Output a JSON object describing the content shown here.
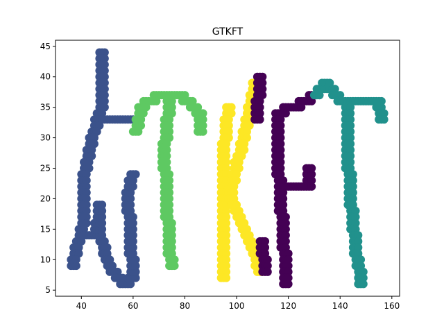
{
  "chart_data": {
    "type": "scatter",
    "title": "GTKFT",
    "xlabel": "",
    "ylabel": "",
    "xlim": [
      30,
      163
    ],
    "ylim": [
      4,
      46
    ],
    "xticks": [
      40,
      60,
      80,
      100,
      120,
      140,
      160
    ],
    "yticks": [
      5,
      10,
      15,
      20,
      25,
      30,
      35,
      40,
      45
    ],
    "grid": false,
    "legend": "none",
    "marker_colors": {
      "G": "#3b528b",
      "T1": "#5ec962",
      "K": "#fde725",
      "F": "#440154",
      "T2": "#21918c"
    },
    "series": [
      {
        "name": "G",
        "color": "#3b528b",
        "strokes": [
          [
            [
              48,
              44
            ],
            [
              48,
              35
            ],
            [
              44,
              30
            ],
            [
              41,
              24
            ],
            [
              41,
              16
            ],
            [
              38,
              12
            ],
            [
              37,
              9
            ]
          ],
          [
            [
              41,
              14
            ],
            [
              46,
              14
            ]
          ],
          [
            [
              46,
              14
            ],
            [
              47,
              19
            ],
            [
              47,
              14
            ],
            [
              50,
              10
            ],
            [
              52,
              8
            ],
            [
              57,
              6
            ],
            [
              60,
              7
            ],
            [
              59,
              14
            ],
            [
              58,
              21
            ],
            [
              60,
              24
            ]
          ],
          [
            [
              46,
              33
            ],
            [
              62,
              33
            ]
          ]
        ]
      },
      {
        "name": "T1",
        "color": "#5ec962",
        "strokes": [
          [
            [
              61,
              31
            ],
            [
              63,
              35
            ],
            [
              70,
              37
            ],
            [
              78,
              37
            ],
            [
              86,
              34
            ],
            [
              86,
              31
            ]
          ],
          [
            [
              74,
              36
            ],
            [
              72,
              28
            ],
            [
              73,
              20
            ],
            [
              74,
              12
            ],
            [
              75,
              9
            ]
          ]
        ]
      },
      {
        "name": "K",
        "color": "#fde725",
        "strokes": [
          [
            [
              97,
              35
            ],
            [
              95,
              28
            ],
            [
              95,
              20
            ],
            [
              95,
              13
            ],
            [
              95,
              7
            ]
          ],
          [
            [
              107,
              39
            ],
            [
              104,
              32
            ],
            [
              98,
              22
            ],
            [
              98,
              20
            ],
            [
              103,
              15
            ],
            [
              107,
              11
            ],
            [
              109,
              8
            ]
          ]
        ]
      },
      {
        "name": "F",
        "color": "#440154",
        "strokes": [
          [
            [
              109,
              40
            ],
            [
              108,
              33
            ]
          ],
          [
            [
              116,
              34
            ],
            [
              116,
              26
            ],
            [
              117,
              20
            ],
            [
              118,
              14
            ],
            [
              119,
              8
            ],
            [
              119,
              6
            ]
          ],
          [
            [
              116,
              34
            ],
            [
              122,
              35
            ],
            [
              131,
              37
            ]
          ],
          [
            [
              118,
              22
            ],
            [
              128,
              22
            ],
            [
              128,
              25
            ]
          ],
          [
            [
              110,
              13
            ],
            [
              111,
              8
            ]
          ]
        ]
      },
      {
        "name": "T2",
        "color": "#21918c",
        "strokes": [
          [
            [
              131,
              37
            ],
            [
              135,
              39
            ],
            [
              140,
              36
            ],
            [
              155,
              36
            ],
            [
              156,
              33
            ]
          ],
          [
            [
              143,
              35
            ],
            [
              143,
              28
            ],
            [
              144,
              20
            ],
            [
              146,
              12
            ],
            [
              148,
              7
            ],
            [
              148,
              6
            ]
          ]
        ]
      }
    ]
  }
}
